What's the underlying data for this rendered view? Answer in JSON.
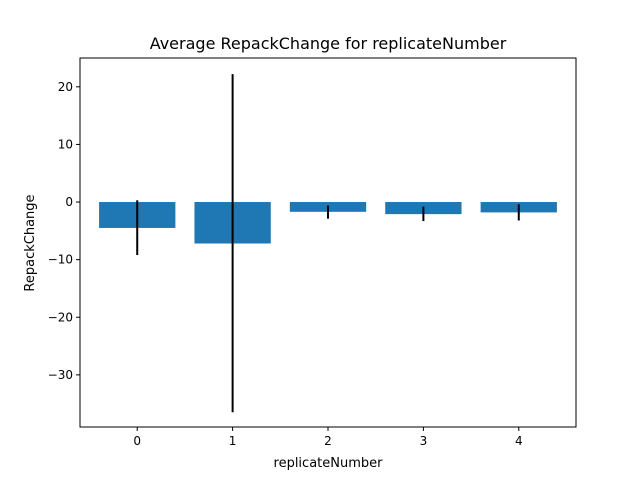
{
  "chart_data": {
    "type": "bar",
    "title": "Average RepackChange for replicateNumber",
    "xlabel": "replicateNumber",
    "ylabel": "RepackChange",
    "categories": [
      "0",
      "1",
      "2",
      "3",
      "4"
    ],
    "values": [
      -4.5,
      -7.2,
      -1.7,
      -2.1,
      -1.8
    ],
    "errors": [
      [
        -9.2,
        0.3
      ],
      [
        -36.5,
        22.2
      ],
      [
        -2.9,
        -0.6
      ],
      [
        -3.3,
        -0.8
      ],
      [
        -3.2,
        -0.4
      ]
    ],
    "ylim": [
      -39.05,
      25.0
    ],
    "yticks": [
      20,
      10,
      0,
      -10,
      -20,
      -30
    ],
    "ytick_labels": [
      "20",
      "10",
      "0",
      "−10",
      "−20",
      "−30"
    ],
    "grid": false,
    "bar_color": "#1f77b4",
    "error_color": "#000000"
  }
}
